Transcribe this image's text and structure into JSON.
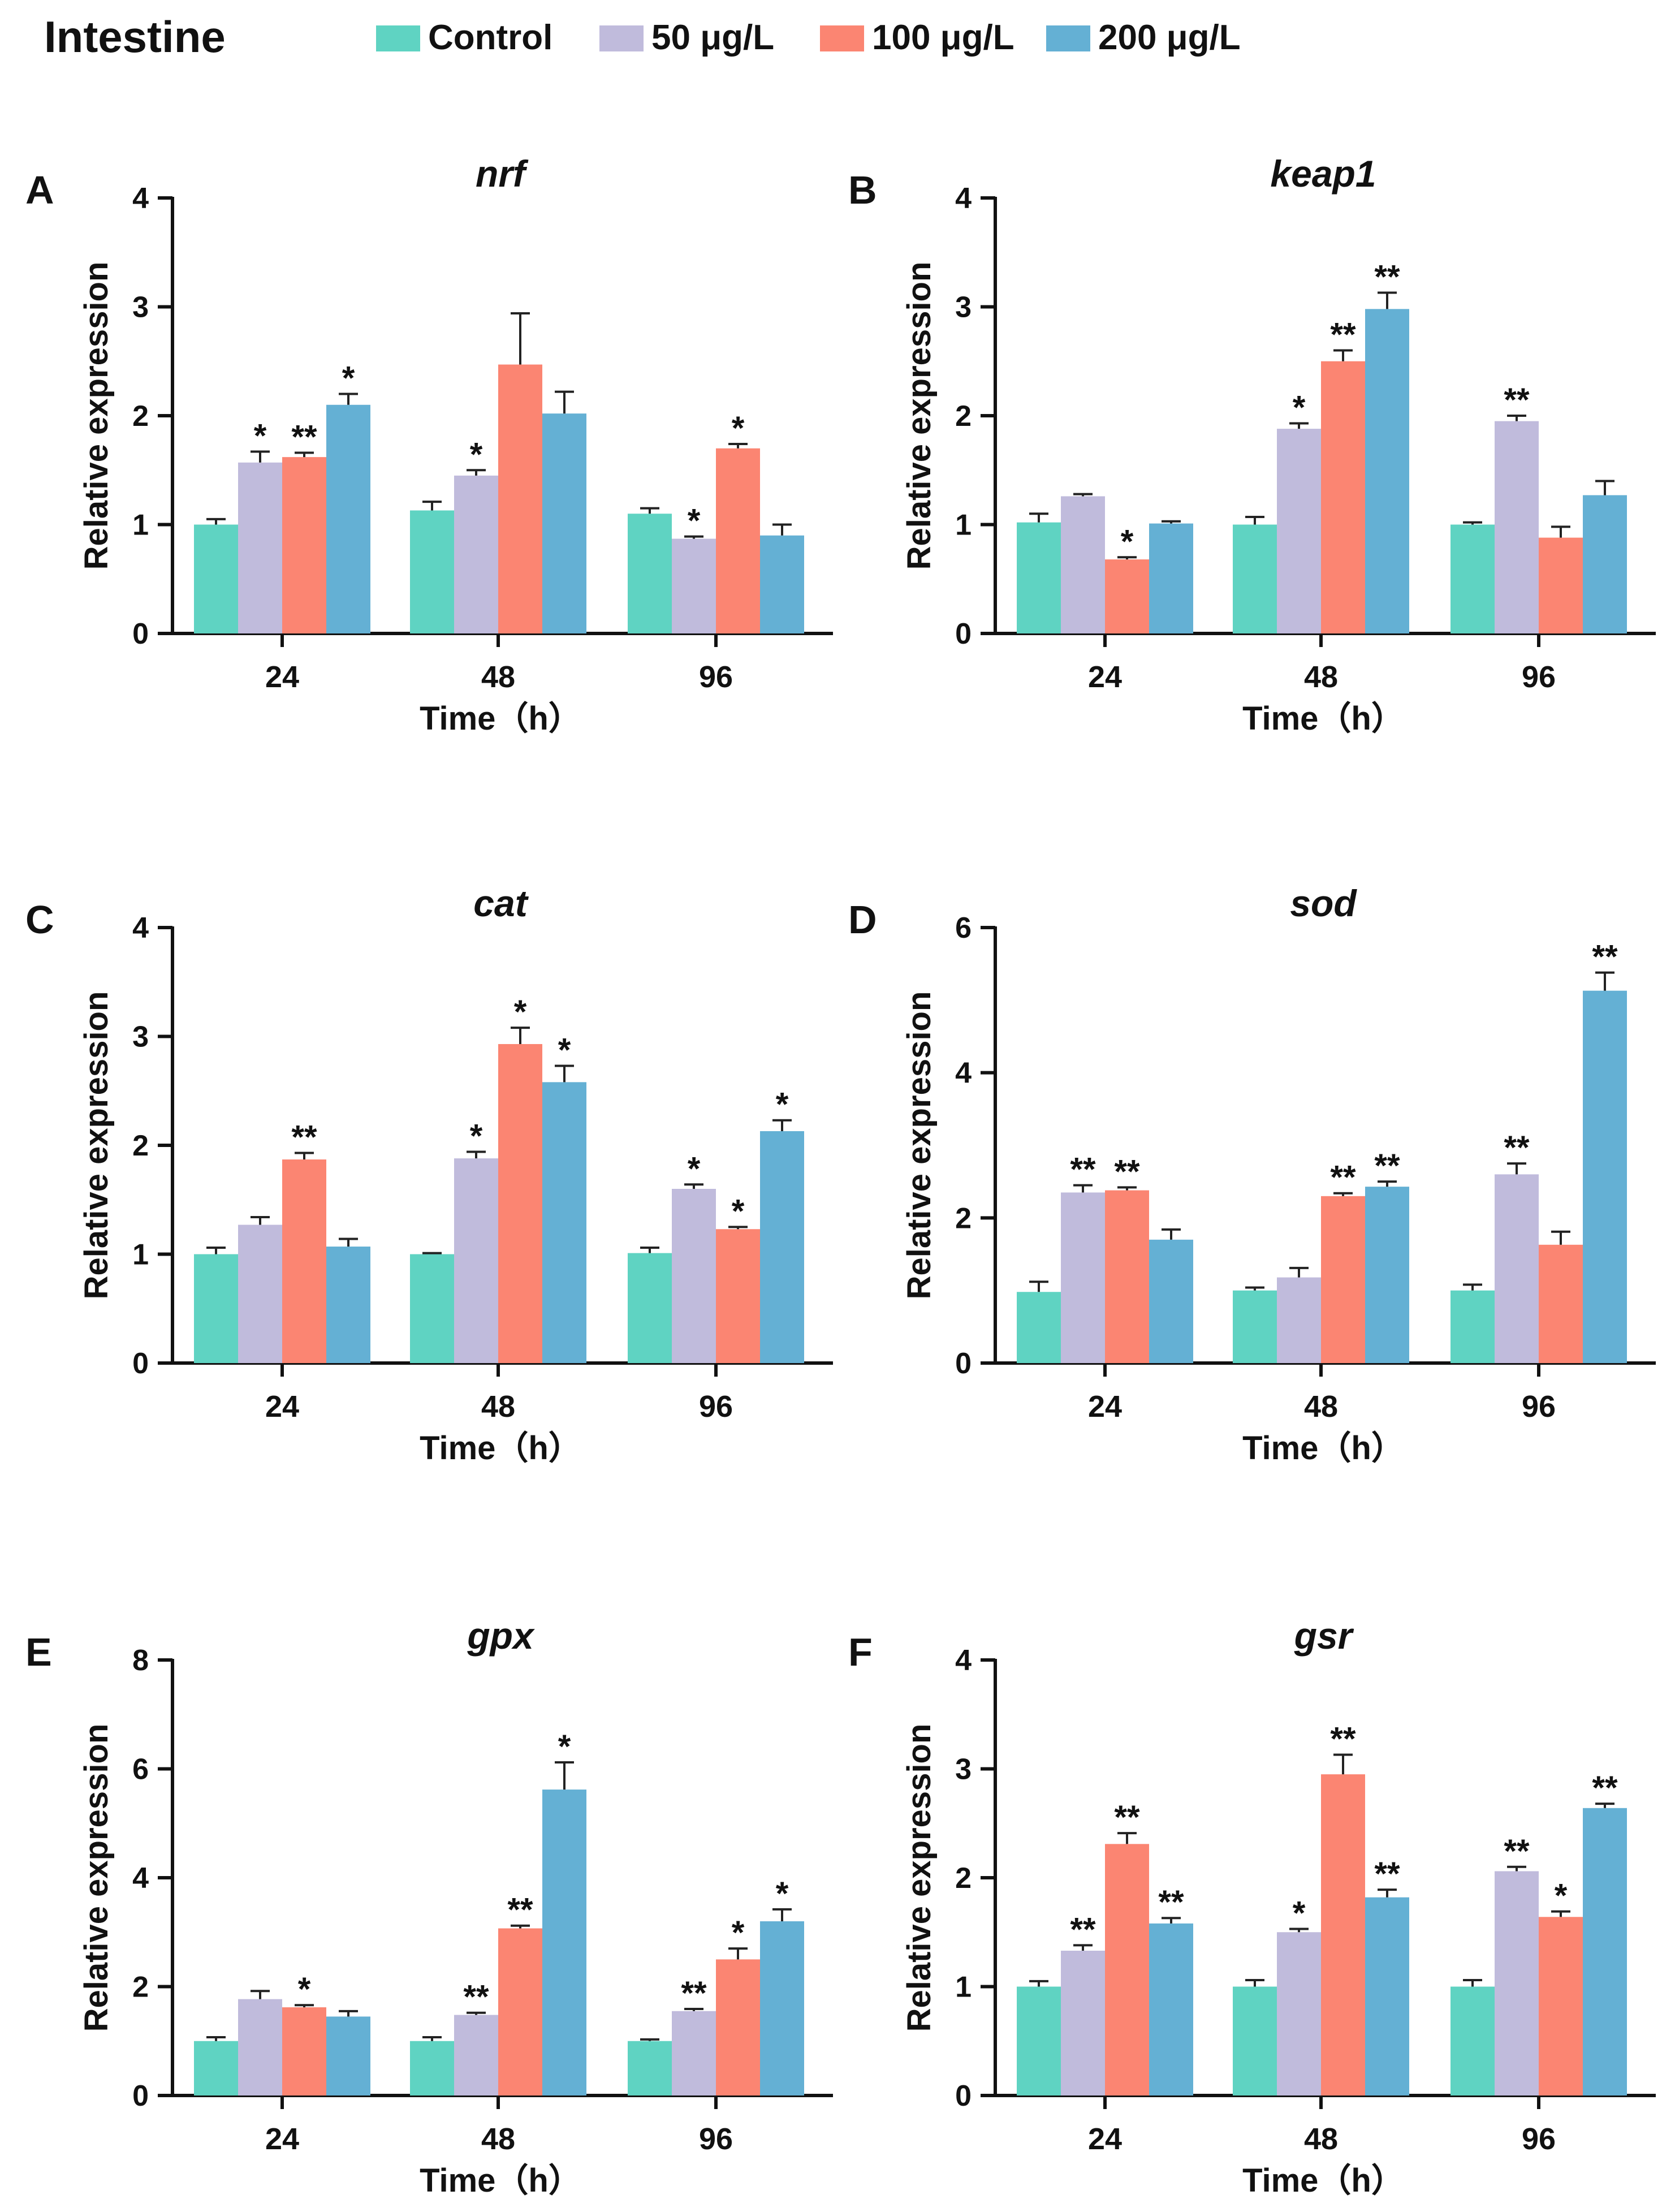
{
  "figure_title": "Intestine",
  "legend": [
    {
      "label": "Control",
      "color": "#5fd3c2"
    },
    {
      "label": "50 μg/L",
      "color": "#c0bbdc"
    },
    {
      "label": "100 μg/L",
      "color": "#fb8572"
    },
    {
      "label": "200 μg/L",
      "color": "#64b0d4"
    }
  ],
  "chart_data": [
    {
      "panel": "A",
      "type": "bar",
      "title": "nrf",
      "xlabel": "Time（h）",
      "ylabel": "Relative expression",
      "categories": [
        "24",
        "48",
        "96"
      ],
      "ylim": [
        0,
        4
      ],
      "yticks": [
        0,
        1,
        2,
        3,
        4
      ],
      "series": [
        {
          "name": "Control",
          "values": [
            1.0,
            1.13,
            1.1
          ],
          "errors": [
            0.05,
            0.08,
            0.05
          ],
          "sig": [
            "",
            "",
            ""
          ]
        },
        {
          "name": "50 μg/L",
          "values": [
            1.57,
            1.45,
            0.87
          ],
          "errors": [
            0.1,
            0.05,
            0.02
          ],
          "sig": [
            "*",
            "*",
            "*"
          ]
        },
        {
          "name": "100 μg/L",
          "values": [
            1.62,
            2.47,
            1.7
          ],
          "errors": [
            0.04,
            0.47,
            0.04
          ],
          "sig": [
            "**",
            "",
            "*"
          ]
        },
        {
          "name": "200 μg/L",
          "values": [
            2.1,
            2.02,
            0.9
          ],
          "errors": [
            0.1,
            0.2,
            0.1
          ],
          "sig": [
            "*",
            "",
            ""
          ]
        }
      ]
    },
    {
      "panel": "B",
      "type": "bar",
      "title": "keap1",
      "xlabel": "Time（h）",
      "ylabel": "Relative expression",
      "categories": [
        "24",
        "48",
        "96"
      ],
      "ylim": [
        0,
        4
      ],
      "yticks": [
        0,
        1,
        2,
        3,
        4
      ],
      "series": [
        {
          "name": "Control",
          "values": [
            1.02,
            1.0,
            1.0
          ],
          "errors": [
            0.08,
            0.07,
            0.02
          ],
          "sig": [
            "",
            "",
            ""
          ]
        },
        {
          "name": "50 μg/L",
          "values": [
            1.26,
            1.88,
            1.95
          ],
          "errors": [
            0.02,
            0.05,
            0.05
          ],
          "sig": [
            "",
            "*",
            "**"
          ]
        },
        {
          "name": "100 μg/L",
          "values": [
            0.68,
            2.5,
            0.88
          ],
          "errors": [
            0.02,
            0.1,
            0.1
          ],
          "sig": [
            "*",
            "**",
            ""
          ]
        },
        {
          "name": "200 μg/L",
          "values": [
            1.01,
            2.98,
            1.27
          ],
          "errors": [
            0.02,
            0.15,
            0.13
          ],
          "sig": [
            "",
            "**",
            ""
          ]
        }
      ]
    },
    {
      "panel": "C",
      "type": "bar",
      "title": "cat",
      "xlabel": "Time（h）",
      "ylabel": "Relative expression",
      "categories": [
        "24",
        "48",
        "96"
      ],
      "ylim": [
        0,
        4
      ],
      "yticks": [
        0,
        1,
        2,
        3,
        4
      ],
      "series": [
        {
          "name": "Control",
          "values": [
            1.0,
            1.0,
            1.01
          ],
          "errors": [
            0.06,
            0.01,
            0.05
          ],
          "sig": [
            "",
            "",
            ""
          ]
        },
        {
          "name": "50 μg/L",
          "values": [
            1.27,
            1.88,
            1.6
          ],
          "errors": [
            0.07,
            0.06,
            0.04
          ],
          "sig": [
            "",
            "*",
            "*"
          ]
        },
        {
          "name": "100 μg/L",
          "values": [
            1.87,
            2.93,
            1.23
          ],
          "errors": [
            0.06,
            0.15,
            0.02
          ],
          "sig": [
            "**",
            "*",
            "*"
          ]
        },
        {
          "name": "200 μg/L",
          "values": [
            1.07,
            2.58,
            2.13
          ],
          "errors": [
            0.07,
            0.15,
            0.1
          ],
          "sig": [
            "",
            "*",
            "*"
          ]
        }
      ]
    },
    {
      "panel": "D",
      "type": "bar",
      "title": "sod",
      "xlabel": "Time（h）",
      "ylabel": "Relative expression",
      "categories": [
        "24",
        "48",
        "96"
      ],
      "ylim": [
        0,
        6
      ],
      "yticks": [
        0,
        2,
        4,
        6
      ],
      "series": [
        {
          "name": "Control",
          "values": [
            0.98,
            1.0,
            1.0
          ],
          "errors": [
            0.14,
            0.04,
            0.08
          ],
          "sig": [
            "",
            "",
            ""
          ]
        },
        {
          "name": "50 μg/L",
          "values": [
            2.35,
            1.18,
            2.6
          ],
          "errors": [
            0.1,
            0.13,
            0.15
          ],
          "sig": [
            "**",
            "",
            "**"
          ]
        },
        {
          "name": "100 μg/L",
          "values": [
            2.38,
            2.3,
            1.63
          ],
          "errors": [
            0.04,
            0.04,
            0.18
          ],
          "sig": [
            "**",
            "**",
            ""
          ]
        },
        {
          "name": "200 μg/L",
          "values": [
            1.7,
            2.43,
            5.13
          ],
          "errors": [
            0.14,
            0.07,
            0.25
          ],
          "sig": [
            "",
            "**",
            "**"
          ]
        }
      ]
    },
    {
      "panel": "E",
      "type": "bar",
      "title": "gpx",
      "xlabel": "Time（h）",
      "ylabel": "Relative expression",
      "categories": [
        "24",
        "48",
        "96"
      ],
      "ylim": [
        0,
        8
      ],
      "yticks": [
        0,
        2,
        4,
        6,
        8
      ],
      "series": [
        {
          "name": "Control",
          "values": [
            1.0,
            1.0,
            1.0
          ],
          "errors": [
            0.07,
            0.07,
            0.03
          ],
          "sig": [
            "",
            "",
            ""
          ]
        },
        {
          "name": "50 μg/L",
          "values": [
            1.77,
            1.48,
            1.55
          ],
          "errors": [
            0.15,
            0.04,
            0.04
          ],
          "sig": [
            "",
            "**",
            "**"
          ]
        },
        {
          "name": "100 μg/L",
          "values": [
            1.62,
            3.07,
            2.5
          ],
          "errors": [
            0.04,
            0.05,
            0.2
          ],
          "sig": [
            "*",
            "**",
            "*"
          ]
        },
        {
          "name": "200 μg/L",
          "values": [
            1.45,
            5.62,
            3.2
          ],
          "errors": [
            0.1,
            0.5,
            0.22
          ],
          "sig": [
            "",
            "*",
            "*"
          ]
        }
      ]
    },
    {
      "panel": "F",
      "type": "bar",
      "title": "gsr",
      "xlabel": "Time（h）",
      "ylabel": "Relative expression",
      "categories": [
        "24",
        "48",
        "96"
      ],
      "ylim": [
        0,
        4
      ],
      "yticks": [
        0,
        1,
        2,
        3,
        4
      ],
      "series": [
        {
          "name": "Control",
          "values": [
            1.0,
            1.0,
            1.0
          ],
          "errors": [
            0.05,
            0.06,
            0.06
          ],
          "sig": [
            "",
            "",
            ""
          ]
        },
        {
          "name": "50 μg/L",
          "values": [
            1.33,
            1.5,
            2.06
          ],
          "errors": [
            0.05,
            0.03,
            0.04
          ],
          "sig": [
            "**",
            "*",
            "**"
          ]
        },
        {
          "name": "100 μg/L",
          "values": [
            2.31,
            2.95,
            1.64
          ],
          "errors": [
            0.1,
            0.18,
            0.05
          ],
          "sig": [
            "**",
            "**",
            "*"
          ]
        },
        {
          "name": "200 μg/L",
          "values": [
            1.58,
            1.82,
            2.64
          ],
          "errors": [
            0.05,
            0.07,
            0.04
          ],
          "sig": [
            "**",
            "**",
            "**"
          ]
        }
      ]
    }
  ]
}
